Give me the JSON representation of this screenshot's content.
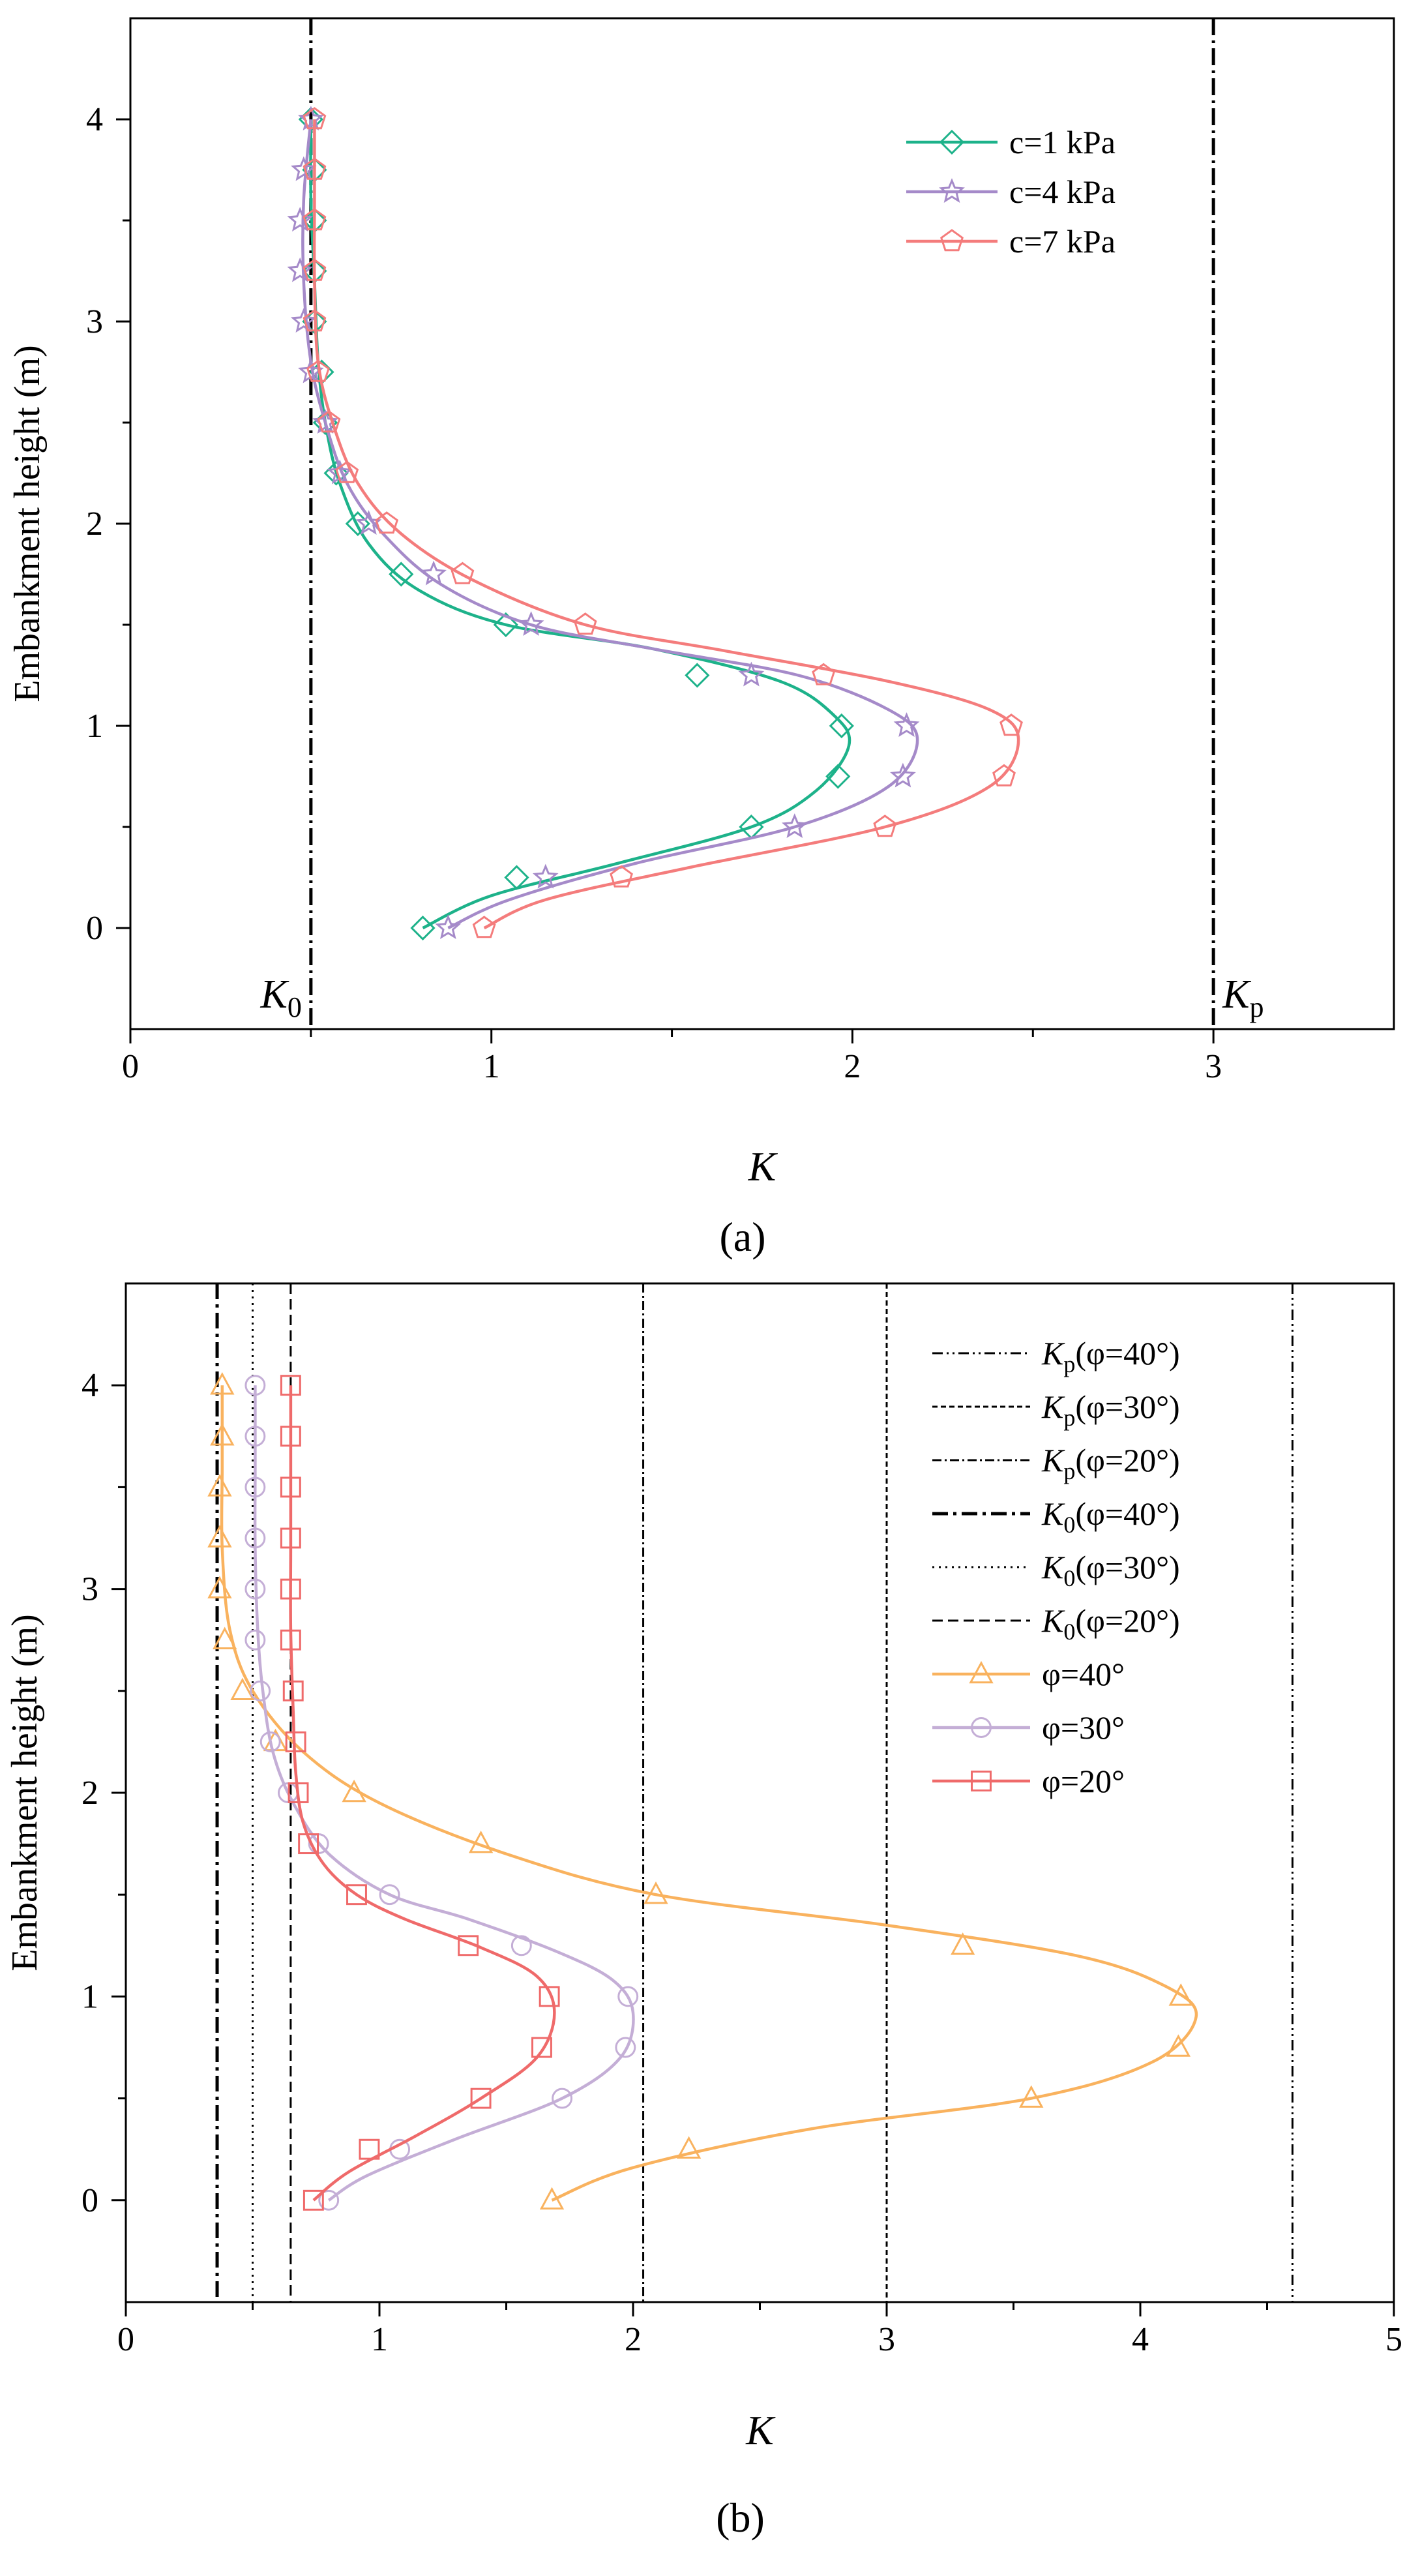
{
  "chart_data": [
    {
      "id": "a",
      "type": "line",
      "panel_label": "(a)",
      "xlabel": "K",
      "ylabel": "Embankment height (m)",
      "xlim": [
        0,
        3.5
      ],
      "ylim": [
        -0.5,
        4.5
      ],
      "xticks": [
        0,
        1,
        2,
        3
      ],
      "xtick_labels": [
        "0",
        "1",
        "2",
        "3"
      ],
      "yticks": [
        0,
        1,
        2,
        3,
        4
      ],
      "ytick_labels": [
        "0",
        "1",
        "2",
        "3",
        "4"
      ],
      "legend_position": "top-right",
      "ref_lines": [
        {
          "name": "K0",
          "x": 0.5,
          "label_main": "K",
          "label_sub": "0",
          "label_side": "left",
          "dash": "26,8,4,8",
          "width": 5
        },
        {
          "name": "Kp",
          "x": 3.0,
          "label_main": "K",
          "label_sub": "p",
          "label_side": "right",
          "dash": "26,8,4,8",
          "width": 5
        }
      ],
      "series": [
        {
          "name": "c=1 kPa",
          "color": "#1db28a",
          "marker": "diamond",
          "y": [
            0,
            0.25,
            0.5,
            0.75,
            1.0,
            1.25,
            1.5,
            1.75,
            2.0,
            2.25,
            2.5,
            2.75,
            3.0,
            3.25,
            3.5,
            3.75,
            4.0
          ],
          "x": [
            0.81,
            1.07,
            1.72,
            1.96,
            1.97,
            1.57,
            1.04,
            0.75,
            0.63,
            0.57,
            0.54,
            0.53,
            0.51,
            0.51,
            0.51,
            0.51,
            0.5
          ],
          "curve": [
            [
              0.81,
              0
            ],
            [
              1.0,
              0.16
            ],
            [
              1.35,
              0.32
            ],
            [
              1.72,
              0.5
            ],
            [
              1.9,
              0.68
            ],
            [
              1.99,
              0.9
            ],
            [
              1.95,
              1.05
            ],
            [
              1.8,
              1.22
            ],
            [
              1.45,
              1.38
            ],
            [
              1.04,
              1.5
            ],
            [
              0.8,
              1.67
            ],
            [
              0.66,
              1.9
            ],
            [
              0.58,
              2.2
            ],
            [
              0.54,
              2.5
            ],
            [
              0.52,
              2.8
            ],
            [
              0.51,
              3.2
            ],
            [
              0.5,
              3.6
            ],
            [
              0.5,
              4.0
            ]
          ]
        },
        {
          "name": "c=4 kPa",
          "color": "#a58ac9",
          "marker": "star",
          "y": [
            0,
            0.25,
            0.5,
            0.75,
            1.0,
            1.25,
            1.5,
            1.75,
            2.0,
            2.25,
            2.5,
            2.75,
            3.0,
            3.25,
            3.5,
            3.75,
            4.0
          ],
          "x": [
            0.88,
            1.15,
            1.84,
            2.14,
            2.15,
            1.72,
            1.11,
            0.84,
            0.66,
            0.58,
            0.54,
            0.5,
            0.48,
            0.47,
            0.47,
            0.48,
            0.5
          ],
          "curve": [
            [
              0.88,
              0
            ],
            [
              1.05,
              0.14
            ],
            [
              1.4,
              0.32
            ],
            [
              1.84,
              0.5
            ],
            [
              2.1,
              0.7
            ],
            [
              2.18,
              0.93
            ],
            [
              2.1,
              1.08
            ],
            [
              1.85,
              1.25
            ],
            [
              1.45,
              1.38
            ],
            [
              1.11,
              1.5
            ],
            [
              0.86,
              1.7
            ],
            [
              0.7,
              1.95
            ],
            [
              0.6,
              2.2
            ],
            [
              0.54,
              2.5
            ],
            [
              0.5,
              2.8
            ],
            [
              0.48,
              3.2
            ],
            [
              0.48,
              3.6
            ],
            [
              0.5,
              4.0
            ]
          ]
        },
        {
          "name": "c=7 kPa",
          "color": "#f47c7c",
          "marker": "pentagon",
          "y": [
            0,
            0.25,
            0.5,
            0.75,
            1.0,
            1.25,
            1.5,
            1.75,
            2.0,
            2.25,
            2.5,
            2.75,
            3.0,
            3.25,
            3.5,
            3.75,
            4.0
          ],
          "x": [
            0.98,
            1.36,
            2.09,
            2.42,
            2.44,
            1.92,
            1.26,
            0.92,
            0.71,
            0.6,
            0.55,
            0.52,
            0.51,
            0.51,
            0.51,
            0.51,
            0.51
          ],
          "curve": [
            [
              0.98,
              0
            ],
            [
              1.15,
              0.14
            ],
            [
              1.55,
              0.3
            ],
            [
              2.09,
              0.5
            ],
            [
              2.38,
              0.7
            ],
            [
              2.46,
              0.93
            ],
            [
              2.38,
              1.08
            ],
            [
              2.1,
              1.22
            ],
            [
              1.65,
              1.37
            ],
            [
              1.26,
              1.5
            ],
            [
              0.95,
              1.72
            ],
            [
              0.75,
              1.95
            ],
            [
              0.63,
              2.2
            ],
            [
              0.56,
              2.5
            ],
            [
              0.52,
              2.8
            ],
            [
              0.51,
              3.2
            ],
            [
              0.51,
              3.6
            ],
            [
              0.51,
              4.0
            ]
          ]
        }
      ]
    },
    {
      "id": "b",
      "type": "line",
      "panel_label": "(b)",
      "xlabel": "K",
      "ylabel": "Embankment height (m)",
      "xlim": [
        0,
        5
      ],
      "ylim": [
        -0.5,
        4.5
      ],
      "xticks": [
        0,
        1,
        2,
        3,
        4,
        5
      ],
      "xtick_labels": [
        "0",
        "1",
        "2",
        "3",
        "4",
        "5"
      ],
      "yticks": [
        0,
        1,
        2,
        3,
        4
      ],
      "ytick_labels": [
        "0",
        "1",
        "2",
        "3",
        "4"
      ],
      "legend_position": "top-right",
      "ref_lines": [
        {
          "name": "Kp-40",
          "x": 4.6,
          "label_main": "K",
          "label_sub": "p",
          "label_tail": "(φ=40°)",
          "dash": "16,6,3,6,3,6",
          "width": 3
        },
        {
          "name": "Kp-30",
          "x": 3.0,
          "label_main": "K",
          "label_sub": "p",
          "label_tail": "(φ=30°)",
          "dash": "8,5",
          "width": 3
        },
        {
          "name": "Kp-20",
          "x": 2.04,
          "label_main": "K",
          "label_sub": "p",
          "label_tail": "(φ=20°)",
          "dash": "14,5,3,5",
          "width": 3
        },
        {
          "name": "K0-40",
          "x": 0.36,
          "label_main": "K",
          "label_sub": "0",
          "label_tail": "(φ=40°)",
          "dash": "24,8,5,8",
          "width": 5
        },
        {
          "name": "K0-30",
          "x": 0.5,
          "label_main": "K",
          "label_sub": "0",
          "label_tail": "(φ=30°)",
          "dash": "3,7",
          "width": 3
        },
        {
          "name": "K0-20",
          "x": 0.65,
          "label_main": "K",
          "label_sub": "0",
          "label_tail": "(φ=20°)",
          "dash": "16,8",
          "width": 3
        }
      ],
      "series": [
        {
          "name": "φ=40°",
          "color": "#f9b25e",
          "marker": "triangle",
          "y": [
            0,
            0.25,
            0.5,
            0.75,
            1.0,
            1.25,
            1.5,
            1.75,
            2.0,
            2.25,
            2.5,
            2.75,
            3.0,
            3.25,
            3.5,
            3.75,
            4.0
          ],
          "x": [
            1.68,
            2.22,
            3.57,
            4.15,
            4.16,
            3.3,
            2.09,
            1.4,
            0.9,
            0.59,
            0.46,
            0.39,
            0.37,
            0.37,
            0.37,
            0.38,
            0.38
          ],
          "curve": [
            [
              1.68,
              0
            ],
            [
              2.0,
              0.16
            ],
            [
              2.7,
              0.35
            ],
            [
              3.57,
              0.5
            ],
            [
              4.05,
              0.68
            ],
            [
              4.22,
              0.9
            ],
            [
              4.1,
              1.05
            ],
            [
              3.75,
              1.2
            ],
            [
              3.0,
              1.35
            ],
            [
              2.09,
              1.5
            ],
            [
              1.5,
              1.7
            ],
            [
              1.0,
              1.95
            ],
            [
              0.7,
              2.2
            ],
            [
              0.5,
              2.5
            ],
            [
              0.41,
              2.8
            ],
            [
              0.38,
              3.2
            ],
            [
              0.38,
              3.6
            ],
            [
              0.38,
              4.0
            ]
          ]
        },
        {
          "name": "φ=30°",
          "color": "#c4aed6",
          "marker": "circle",
          "y": [
            0,
            0.25,
            0.5,
            0.75,
            1.0,
            1.25,
            1.5,
            1.75,
            2.0,
            2.25,
            2.5,
            2.75,
            3.0,
            3.25,
            3.5,
            3.75,
            4.0
          ],
          "x": [
            0.8,
            1.08,
            1.72,
            1.97,
            1.98,
            1.56,
            1.04,
            0.76,
            0.64,
            0.57,
            0.53,
            0.51,
            0.51,
            0.51,
            0.51,
            0.51,
            0.51
          ],
          "curve": [
            [
              0.8,
              0
            ],
            [
              0.95,
              0.12
            ],
            [
              1.3,
              0.3
            ],
            [
              1.72,
              0.5
            ],
            [
              1.95,
              0.7
            ],
            [
              2.0,
              0.92
            ],
            [
              1.92,
              1.08
            ],
            [
              1.7,
              1.22
            ],
            [
              1.35,
              1.38
            ],
            [
              1.04,
              1.5
            ],
            [
              0.8,
              1.7
            ],
            [
              0.66,
              1.95
            ],
            [
              0.58,
              2.2
            ],
            [
              0.54,
              2.5
            ],
            [
              0.52,
              2.8
            ],
            [
              0.51,
              3.2
            ],
            [
              0.51,
              3.6
            ],
            [
              0.51,
              4.0
            ]
          ]
        },
        {
          "name": "φ=20°",
          "color": "#ef6a6a",
          "marker": "square",
          "y": [
            0,
            0.25,
            0.5,
            0.75,
            1.0,
            1.25,
            1.5,
            1.75,
            2.0,
            2.25,
            2.5,
            2.75,
            3.0,
            3.25,
            3.5,
            3.75,
            4.0
          ],
          "x": [
            0.74,
            0.96,
            1.4,
            1.64,
            1.67,
            1.35,
            0.91,
            0.72,
            0.68,
            0.67,
            0.66,
            0.65,
            0.65,
            0.65,
            0.65,
            0.65,
            0.65
          ],
          "curve": [
            [
              0.74,
              0
            ],
            [
              0.88,
              0.14
            ],
            [
              1.15,
              0.32
            ],
            [
              1.4,
              0.5
            ],
            [
              1.62,
              0.7
            ],
            [
              1.69,
              0.92
            ],
            [
              1.62,
              1.1
            ],
            [
              1.4,
              1.24
            ],
            [
              1.1,
              1.38
            ],
            [
              0.91,
              1.5
            ],
            [
              0.78,
              1.65
            ],
            [
              0.7,
              1.85
            ],
            [
              0.67,
              2.1
            ],
            [
              0.66,
              2.4
            ],
            [
              0.65,
              2.8
            ],
            [
              0.65,
              3.2
            ],
            [
              0.65,
              3.6
            ],
            [
              0.65,
              4.0
            ]
          ]
        }
      ]
    }
  ]
}
